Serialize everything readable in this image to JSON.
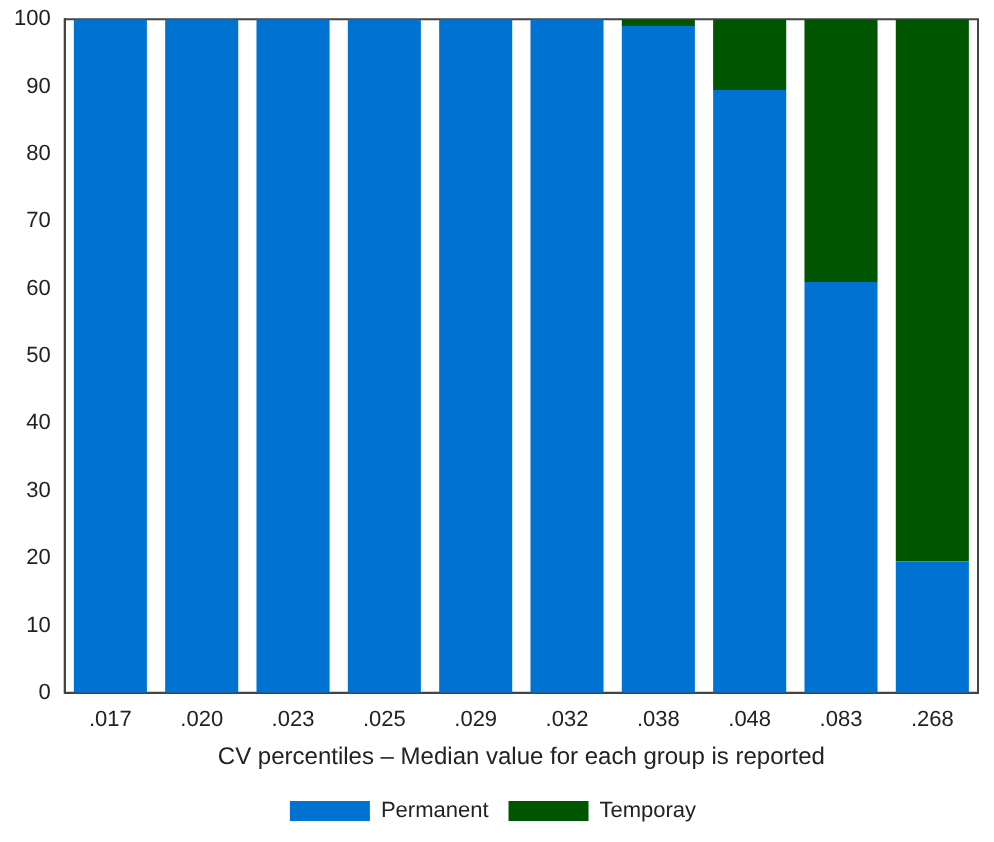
{
  "chart_data": {
    "type": "bar",
    "stacked": true,
    "xlabel": "CV percentiles – Median value for each group is reported",
    "categories": [
      ".017",
      ".020",
      ".023",
      ".025",
      ".029",
      ".032",
      ".038",
      ".048",
      ".083",
      ".268"
    ],
    "series": [
      {
        "name": "Permanent",
        "color": "#0072d2",
        "values": [
          100,
          100,
          100,
          100,
          100,
          100,
          99,
          89.5,
          61,
          19.5
        ]
      },
      {
        "name": "Temporay",
        "color": "#005500",
        "values": [
          0,
          0,
          0,
          0,
          0,
          0,
          1,
          10.5,
          39,
          80.5
        ]
      }
    ],
    "ylim": [
      0,
      100
    ],
    "yticks": [
      0,
      10,
      20,
      30,
      40,
      50,
      60,
      70,
      80,
      90,
      100
    ],
    "grid": false,
    "legend": "bottom"
  }
}
